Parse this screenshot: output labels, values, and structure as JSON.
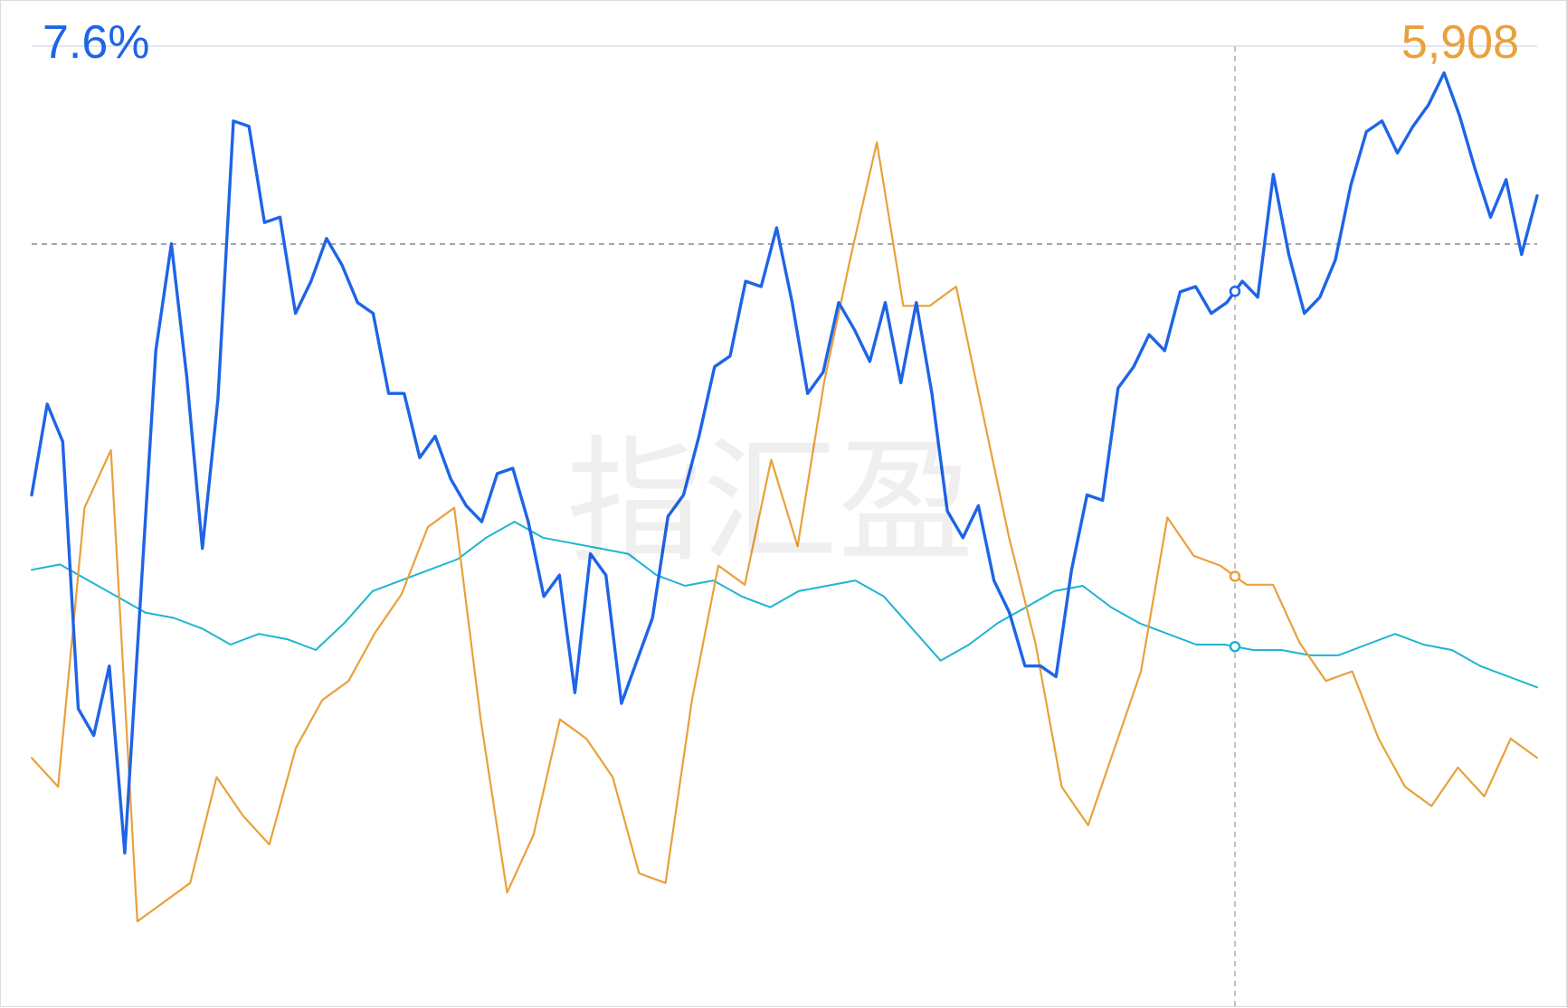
{
  "chart_data": {
    "type": "line",
    "left_axis_top_label": "7.6%",
    "right_axis_top_label": "5,908",
    "watermark": "指汇盈",
    "grid": false,
    "colors": {
      "primary": "#1e64e6",
      "secondary": "#e9a13b",
      "tertiary": "#1fb4d2",
      "reference_line": "#888888",
      "crosshair": "#b4b4b4"
    },
    "series": [
      {
        "axis": "left",
        "color": "#1e64e6",
        "values": [
          -0.4,
          1.3,
          0.6,
          -4.4,
          -4.9,
          -3.6,
          -7.1,
          -2.4,
          2.3,
          4.3,
          1.8,
          -1.4,
          1.4,
          6.6,
          6.5,
          4.7,
          4.8,
          3.0,
          3.6,
          4.4,
          3.9,
          3.2,
          3.0,
          1.5,
          1.5,
          0.3,
          0.7,
          -0.1,
          -0.6,
          -0.9,
          0.0,
          0.1,
          -0.9,
          -2.3,
          -1.9,
          -4.1,
          -1.5,
          -1.9,
          -4.3,
          -3.5,
          -2.7,
          -0.8,
          -0.4,
          0.7,
          2.0,
          2.2,
          3.6,
          3.5,
          4.6,
          3.2,
          1.5,
          1.9,
          3.2,
          2.7,
          2.1,
          3.2,
          1.7,
          3.2,
          1.5,
          -0.7,
          -1.2,
          -0.6,
          -2.0,
          -2.6,
          -3.6,
          -3.6,
          -3.8,
          -1.8,
          -0.4,
          -0.5,
          1.6,
          2.0,
          2.6,
          2.3,
          3.4,
          3.5,
          3.0,
          3.2,
          3.6,
          3.3,
          5.6,
          4.1,
          3.0,
          3.3,
          4.0,
          5.4,
          6.4,
          6.6,
          6.0,
          6.5,
          6.9,
          7.5,
          6.7,
          5.7,
          4.8,
          5.5,
          4.1,
          5.2
        ]
      },
      {
        "axis": "right",
        "color": "#e9a13b",
        "values": [
          2300,
          2150,
          3600,
          3900,
          1450,
          1550,
          1650,
          2200,
          2000,
          1850,
          2350,
          2600,
          2700,
          2950,
          3150,
          3500,
          3600,
          2500,
          1600,
          1900,
          2500,
          2400,
          2200,
          1700,
          1650,
          2600,
          3300,
          3200,
          3850,
          3400,
          4250,
          4900,
          5500,
          4650,
          4650,
          4750,
          4100,
          3450,
          2900,
          2150,
          1950,
          2350,
          2750,
          3550,
          3350,
          3300,
          3200,
          3200,
          2900,
          2700,
          2750,
          2400,
          2150,
          2050,
          2250,
          2100,
          2400,
          2300
        ]
      },
      {
        "axis": "left",
        "color": "#1fb4d2",
        "values": [
          -1.8,
          -1.7,
          -2.0,
          -2.3,
          -2.6,
          -2.7,
          -2.9,
          -3.2,
          -3.0,
          -3.1,
          -3.3,
          -2.8,
          -2.2,
          -2.0,
          -1.8,
          -1.6,
          -1.2,
          -0.9,
          -1.2,
          -1.3,
          -1.4,
          -1.5,
          -1.9,
          -2.1,
          -2.0,
          -2.3,
          -2.5,
          -2.2,
          -2.1,
          -2.0,
          -2.3,
          -2.9,
          -3.5,
          -3.2,
          -2.8,
          -2.5,
          -2.2,
          -2.1,
          -2.5,
          -2.8,
          -3.0,
          -3.2,
          -3.2,
          -3.3,
          -3.3,
          -3.4,
          -3.4,
          -3.2,
          -3.0,
          -3.2,
          -3.3,
          -3.6,
          -3.8,
          -4.0
        ]
      }
    ]
  }
}
